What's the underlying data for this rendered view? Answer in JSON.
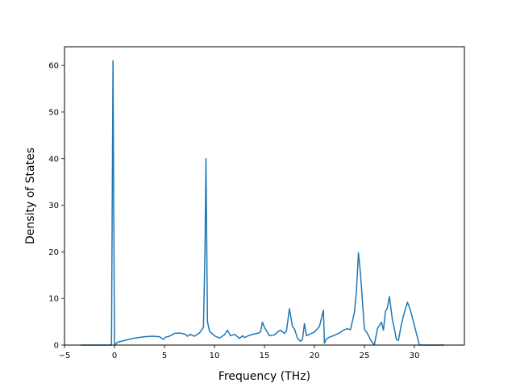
{
  "chart_data": {
    "type": "line",
    "xlabel": "Frequency (THz)",
    "ylabel": "Density of States",
    "xlim": [
      -5,
      35
    ],
    "ylim": [
      0,
      64
    ],
    "xticks": [
      "−5",
      "0",
      "5",
      "10",
      "15",
      "20",
      "25",
      "30"
    ],
    "yticks": [
      "0",
      "10",
      "20",
      "30",
      "40",
      "50",
      "60"
    ],
    "grid": false,
    "legend": "none",
    "series": [
      {
        "color": "#1f77b4",
        "x": [
          -3.4,
          -0.6,
          -0.45,
          -0.3,
          -0.15,
          0.0,
          0.15,
          0.3,
          1.0,
          2.0,
          3.0,
          3.8,
          4.5,
          4.9,
          5.1,
          5.5,
          6.0,
          6.5,
          7.0,
          7.3,
          7.6,
          8.0,
          8.5,
          8.9,
          9.05,
          9.15,
          9.3,
          9.5,
          10.0,
          10.5,
          11.0,
          11.3,
          11.6,
          12.0,
          12.3,
          12.5,
          12.8,
          13.0,
          13.5,
          14.0,
          14.3,
          14.6,
          14.8,
          15.0,
          15.5,
          16.0,
          16.3,
          16.6,
          17.0,
          17.2,
          17.5,
          17.8,
          18.0,
          18.3,
          18.6,
          18.8,
          19.0,
          19.2,
          19.5,
          20.0,
          20.5,
          20.9,
          21.0,
          21.2,
          21.5,
          22.0,
          22.5,
          23.0,
          23.3,
          23.6,
          24.0,
          24.2,
          24.4,
          24.6,
          25.0,
          25.3,
          25.6,
          25.8,
          26.0,
          26.3,
          26.5,
          26.7,
          26.9,
          27.1,
          27.3,
          27.5,
          27.8,
          28.0,
          28.2,
          28.4,
          28.7,
          29.0,
          29.3,
          29.6,
          29.9,
          30.5,
          31.5,
          33.0
        ],
        "y": [
          0,
          0,
          0,
          0,
          61,
          0,
          0.3,
          0.6,
          1.0,
          1.5,
          1.8,
          1.9,
          1.8,
          1.2,
          1.7,
          1.9,
          2.5,
          2.6,
          2.4,
          1.9,
          2.3,
          1.9,
          2.6,
          3.8,
          20.0,
          40.0,
          5.0,
          3.0,
          2.0,
          1.5,
          2.2,
          3.2,
          2.0,
          2.3,
          1.8,
          1.4,
          2.0,
          1.6,
          2.1,
          2.4,
          2.5,
          2.8,
          4.9,
          3.8,
          2.0,
          2.2,
          2.8,
          3.2,
          2.5,
          3.0,
          7.8,
          4.0,
          3.5,
          1.5,
          0.8,
          1.2,
          4.6,
          2.0,
          2.3,
          2.8,
          4.0,
          7.5,
          0.4,
          1.3,
          1.7,
          2.1,
          2.6,
          3.3,
          3.5,
          3.3,
          7.0,
          11.5,
          19.8,
          15.5,
          3.4,
          2.5,
          1.2,
          0.5,
          0.1,
          3.5,
          4.2,
          4.9,
          3.2,
          7.2,
          8.0,
          10.4,
          5.4,
          3.5,
          1.2,
          1.0,
          4.5,
          7.0,
          9.2,
          7.5,
          5.0,
          0,
          0,
          0
        ]
      }
    ]
  }
}
